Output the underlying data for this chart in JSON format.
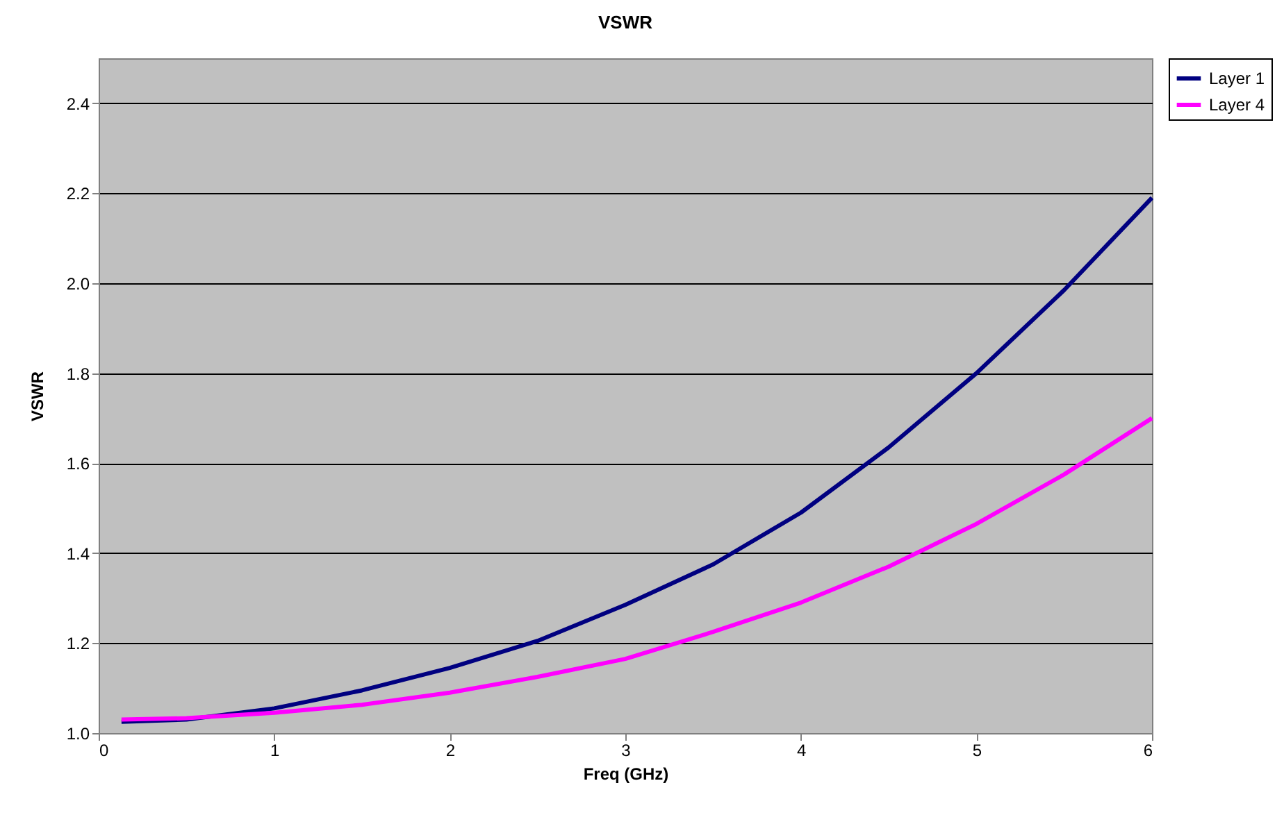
{
  "chart_data": {
    "type": "line",
    "title": "VSWR",
    "xlabel": "Freq (GHz)",
    "ylabel": "VSWR",
    "xlim": [
      0,
      6
    ],
    "xticks": [
      0,
      1,
      2,
      3,
      4,
      5,
      6
    ],
    "ylim": [
      1.0,
      2.5
    ],
    "yticks": [
      {
        "value": 1,
        "label": "1.0"
      },
      {
        "value": 1.2,
        "label": "1.2"
      },
      {
        "value": 1.4,
        "label": "1.4"
      },
      {
        "value": 1.6,
        "label": "1.6"
      },
      {
        "value": 1.8,
        "label": "1.8"
      },
      {
        "value": 2,
        "label": "2.0"
      },
      {
        "value": 2.2,
        "label": "2.2"
      },
      {
        "value": 2.4,
        "label": "2.4"
      }
    ],
    "grid": "y",
    "legend": "right",
    "marker": "none",
    "line_style": "solid",
    "x": [
      0.13,
      0.5,
      1,
      1.5,
      2,
      2.5,
      3,
      3.5,
      4,
      4.5,
      5,
      5.5,
      6
    ],
    "series": [
      {
        "name": "Layer 1",
        "color": "#000080",
        "values": [
          1.025,
          1.03,
          1.055,
          1.095,
          1.145,
          1.205,
          1.285,
          1.375,
          1.49,
          1.635,
          1.8,
          1.985,
          2.19
        ]
      },
      {
        "name": "Layer 4",
        "color": "#ff00ff",
        "values": [
          1.03,
          1.033,
          1.045,
          1.063,
          1.09,
          1.125,
          1.165,
          1.225,
          1.29,
          1.37,
          1.465,
          1.575,
          1.7
        ]
      }
    ]
  }
}
